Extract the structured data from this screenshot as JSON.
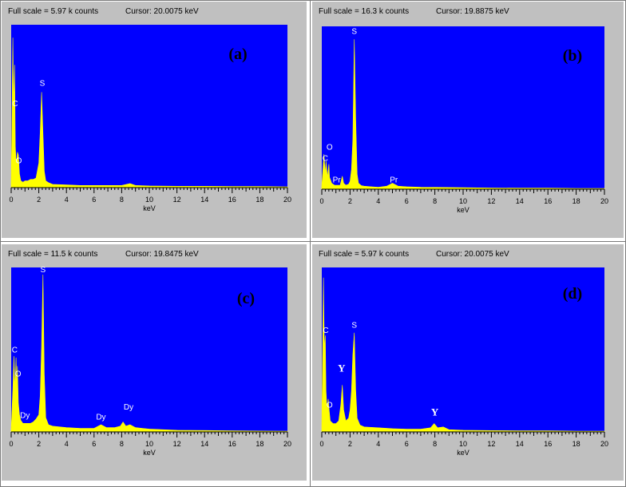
{
  "chart_data": [
    {
      "type": "area",
      "panel_label": "(a)",
      "full_scale": "Full scale = 5.97 k counts",
      "cursor": "Cursor:  20.0075 keV",
      "xlabel": "keV",
      "xlim": [
        0,
        20
      ],
      "ylim": [
        0,
        5.97
      ],
      "x_ticks": [
        "0",
        "2",
        "4",
        "6",
        "8",
        "10",
        "12",
        "14",
        "16",
        "18",
        "20"
      ],
      "x": [
        0.0,
        0.12,
        0.18,
        0.25,
        0.3,
        0.35,
        0.4,
        0.45,
        0.52,
        0.6,
        0.7,
        0.85,
        1.0,
        1.2,
        1.4,
        1.6,
        1.8,
        2.0,
        2.1,
        2.2,
        2.3,
        2.4,
        2.5,
        2.7,
        3.0,
        4.0,
        5.0,
        6.0,
        7.0,
        8.0,
        8.6,
        9.0,
        10.0,
        12.0,
        14.0,
        16.0,
        18.0,
        20.0
      ],
      "values": [
        0.2,
        5.5,
        3.0,
        4.5,
        1.5,
        1.0,
        0.9,
        1.3,
        1.2,
        0.5,
        0.25,
        0.2,
        0.25,
        0.25,
        0.3,
        0.3,
        0.35,
        0.9,
        2.0,
        3.5,
        2.0,
        0.6,
        0.25,
        0.18,
        0.12,
        0.1,
        0.08,
        0.08,
        0.08,
        0.08,
        0.15,
        0.08,
        0.06,
        0.05,
        0.05,
        0.04,
        0.04,
        0.03
      ],
      "peak_labels": [
        {
          "text": "C",
          "x": 0.28,
          "y": 2.9
        },
        {
          "text": "O",
          "x": 0.55,
          "y": 0.8
        },
        {
          "text": "S",
          "x": 2.25,
          "y": 3.65
        }
      ]
    },
    {
      "type": "area",
      "panel_label": "(b)",
      "full_scale": "Full scale = 16.3 k counts",
      "cursor": "Cursor:  19.8875 keV",
      "xlabel": "keV",
      "xlim": [
        0,
        20
      ],
      "ylim": [
        0,
        16.3
      ],
      "x_ticks": [
        "0",
        "2",
        "4",
        "6",
        "8",
        "10",
        "12",
        "14",
        "16",
        "18",
        "20"
      ],
      "x": [
        0.0,
        0.15,
        0.25,
        0.3,
        0.4,
        0.5,
        0.55,
        0.7,
        0.9,
        1.1,
        1.3,
        1.45,
        1.55,
        1.7,
        1.9,
        2.0,
        2.1,
        2.2,
        2.3,
        2.4,
        2.5,
        2.6,
        2.8,
        3.0,
        3.5,
        4.0,
        4.6,
        5.0,
        5.4,
        6.0,
        7.0,
        8.0,
        10.0,
        12.0,
        14.0,
        16.0,
        18.0,
        20.0
      ],
      "values": [
        0.3,
        3.5,
        1.5,
        2.8,
        1.2,
        2.5,
        1.2,
        0.6,
        0.4,
        0.4,
        0.4,
        1.3,
        0.6,
        0.4,
        0.5,
        0.8,
        2.0,
        5.0,
        15.0,
        7.0,
        1.5,
        0.6,
        0.35,
        0.3,
        0.25,
        0.2,
        0.3,
        0.6,
        0.3,
        0.25,
        0.2,
        0.18,
        0.15,
        0.12,
        0.1,
        0.1,
        0.08,
        0.08
      ],
      "peak_labels": [
        {
          "text": "O",
          "x": 0.55,
          "y": 3.7
        },
        {
          "text": "C",
          "x": 0.25,
          "y": 2.6
        },
        {
          "text": "Pr",
          "x": 1.05,
          "y": 0.45
        },
        {
          "text": "S",
          "x": 2.3,
          "y": 15.3
        },
        {
          "text": "Pr",
          "x": 5.1,
          "y": 0.45
        }
      ]
    },
    {
      "type": "area",
      "panel_label": "(c)",
      "full_scale": "Full scale = 11.5 k counts",
      "cursor": "Cursor:  19.8475 keV",
      "xlabel": "keV",
      "xlim": [
        0,
        20
      ],
      "ylim": [
        0,
        11.5
      ],
      "x_ticks": [
        "0",
        "2",
        "4",
        "6",
        "8",
        "10",
        "12",
        "14",
        "16",
        "18",
        "20"
      ],
      "x": [
        0.0,
        0.12,
        0.2,
        0.28,
        0.35,
        0.4,
        0.45,
        0.52,
        0.6,
        0.7,
        0.85,
        1.0,
        1.2,
        1.4,
        1.6,
        1.8,
        2.0,
        2.1,
        2.2,
        2.3,
        2.4,
        2.5,
        2.7,
        3.0,
        4.0,
        5.0,
        6.0,
        6.5,
        6.9,
        7.5,
        7.9,
        8.1,
        8.3,
        8.6,
        9.0,
        9.5,
        10.0,
        12.0,
        14.0,
        16.0,
        18.0,
        20.0
      ],
      "values": [
        0.2,
        3.0,
        5.3,
        3.0,
        5.2,
        3.0,
        4.6,
        2.0,
        1.2,
        0.8,
        0.6,
        0.6,
        0.6,
        0.6,
        0.7,
        0.9,
        1.2,
        2.5,
        6.0,
        11.0,
        4.0,
        1.0,
        0.5,
        0.4,
        0.3,
        0.25,
        0.25,
        0.5,
        0.3,
        0.3,
        0.4,
        0.7,
        0.4,
        0.5,
        0.3,
        0.25,
        0.2,
        0.12,
        0.1,
        0.08,
        0.06,
        0.05
      ],
      "peak_labels": [
        {
          "text": "C",
          "x": 0.25,
          "y": 5.4
        },
        {
          "text": "O",
          "x": 0.5,
          "y": 3.7
        },
        {
          "text": "Dy",
          "x": 1.0,
          "y": 0.8
        },
        {
          "text": "S",
          "x": 2.3,
          "y": 11.0
        },
        {
          "text": "Dy",
          "x": 6.5,
          "y": 0.7
        },
        {
          "text": "Dy",
          "x": 8.5,
          "y": 1.4
        }
      ]
    },
    {
      "type": "area",
      "panel_label": "(d)",
      "full_scale": "Full scale = 5.97 k counts",
      "cursor": "Cursor:  20.0075 keV",
      "xlabel": "keV",
      "xlim": [
        0,
        20
      ],
      "ylim": [
        0,
        5.97
      ],
      "x_ticks": [
        "0",
        "2",
        "4",
        "6",
        "8",
        "10",
        "12",
        "14",
        "16",
        "18",
        "20"
      ],
      "x": [
        0.0,
        0.12,
        0.18,
        0.25,
        0.3,
        0.35,
        0.4,
        0.45,
        0.52,
        0.6,
        0.8,
        1.0,
        1.2,
        1.35,
        1.45,
        1.55,
        1.7,
        1.9,
        2.0,
        2.1,
        2.2,
        2.3,
        2.4,
        2.5,
        2.7,
        3.0,
        4.0,
        5.0,
        6.0,
        7.0,
        7.7,
        7.95,
        8.2,
        8.6,
        9.0,
        10.0,
        12.0,
        14.0,
        16.0,
        18.0,
        20.0
      ],
      "values": [
        0.2,
        5.6,
        3.0,
        3.5,
        1.5,
        1.0,
        0.8,
        1.2,
        0.8,
        0.4,
        0.3,
        0.3,
        0.4,
        1.0,
        1.7,
        0.8,
        0.4,
        0.5,
        0.8,
        1.5,
        2.8,
        3.6,
        1.5,
        0.5,
        0.25,
        0.18,
        0.15,
        0.12,
        0.1,
        0.1,
        0.15,
        0.3,
        0.15,
        0.18,
        0.08,
        0.06,
        0.05,
        0.04,
        0.04,
        0.03,
        0.03
      ],
      "peak_labels": [
        {
          "text": "C",
          "x": 0.28,
          "y": 3.5
        },
        {
          "text": "O",
          "x": 0.55,
          "y": 0.8
        },
        {
          "text": "Y",
          "x": 1.4,
          "y": 2.1
        },
        {
          "text": "S",
          "x": 2.3,
          "y": 3.7
        },
        {
          "text": "Y",
          "x": 8.0,
          "y": 0.5
        }
      ]
    }
  ]
}
